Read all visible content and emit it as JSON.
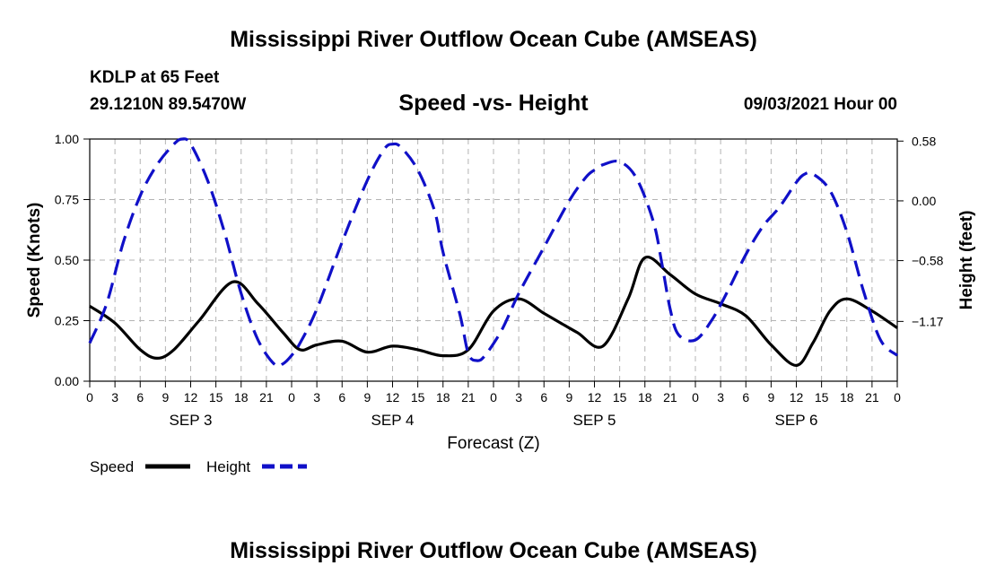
{
  "page": {
    "top_title": "Mississippi River Outflow Ocean Cube (AMSEAS)",
    "bottom_title": "Mississippi River Outflow Ocean Cube (AMSEAS)",
    "station": "KDLP at 65 Feet",
    "coords": "29.1210N  89.5470W",
    "date": "09/03/2021 Hour 00"
  },
  "colors": {
    "speed": "#000000",
    "height": "#1010c8",
    "grid": "#b4b4b4"
  },
  "chart_data": {
    "type": "line",
    "title": "Speed -vs- Height",
    "xlabel": "Forecast (Z)",
    "ylabel": "Speed (Knots)",
    "y2label": "Height (feet)",
    "xlim": [
      0,
      96
    ],
    "ylim": [
      0,
      1.0
    ],
    "y2lim": [
      -1.75,
      0.6
    ],
    "yticks": [
      0.0,
      0.25,
      0.5,
      0.75,
      1.0
    ],
    "ytick_labels": [
      "0.00",
      "0.25",
      "0.50",
      "0.75",
      "1.00"
    ],
    "y2ticks": [
      -1.17,
      -0.58,
      0.0,
      0.58
    ],
    "y2tick_labels": [
      "−1.17",
      "−0.58",
      "0.00",
      "0.58"
    ],
    "xticks": [
      0,
      3,
      6,
      9,
      12,
      15,
      18,
      21,
      24,
      27,
      30,
      33,
      36,
      39,
      42,
      45,
      48,
      51,
      54,
      57,
      60,
      63,
      66,
      69,
      72,
      75,
      78,
      81,
      84,
      87,
      90,
      93,
      96
    ],
    "xtick_labels": [
      "0",
      "3",
      "6",
      "9",
      "12",
      "15",
      "18",
      "21",
      "0",
      "3",
      "6",
      "9",
      "12",
      "15",
      "18",
      "21",
      "0",
      "3",
      "6",
      "9",
      "12",
      "15",
      "18",
      "21",
      "0",
      "3",
      "6",
      "9",
      "12",
      "15",
      "18",
      "21",
      "0"
    ],
    "day_labels": [
      {
        "x": 12,
        "label": "SEP 3"
      },
      {
        "x": 36,
        "label": "SEP 4"
      },
      {
        "x": 60,
        "label": "SEP 5"
      },
      {
        "x": 84,
        "label": "SEP 6"
      }
    ],
    "legend": [
      {
        "name": "Speed",
        "style": "solid"
      },
      {
        "name": "Height",
        "style": "dashed"
      }
    ],
    "series": [
      {
        "name": "Speed",
        "axis": "left",
        "x": [
          0,
          3,
          6,
          8,
          10,
          13,
          17,
          20,
          23,
          25,
          27,
          30,
          33,
          36,
          39,
          42,
          45,
          48,
          51,
          54,
          56,
          58,
          61,
          64,
          66,
          69,
          72,
          75,
          78,
          81,
          84,
          86,
          88,
          90,
          93,
          96
        ],
        "y": [
          0.31,
          0.24,
          0.13,
          0.095,
          0.13,
          0.25,
          0.41,
          0.32,
          0.2,
          0.13,
          0.15,
          0.165,
          0.12,
          0.145,
          0.13,
          0.105,
          0.13,
          0.29,
          0.34,
          0.28,
          0.24,
          0.2,
          0.145,
          0.34,
          0.51,
          0.44,
          0.36,
          0.32,
          0.27,
          0.15,
          0.065,
          0.16,
          0.29,
          0.34,
          0.29,
          0.22
        ]
      },
      {
        "name": "Height",
        "axis": "right",
        "x": [
          0,
          2,
          4,
          6,
          8,
          10,
          11,
          12,
          14,
          16,
          18,
          20,
          22,
          23,
          24,
          25,
          27,
          30,
          33,
          35,
          36,
          37,
          39,
          41,
          42,
          44,
          45,
          46,
          47,
          49,
          51,
          54,
          57,
          59,
          60,
          61,
          63,
          65,
          67,
          68,
          69,
          70,
          72,
          74,
          76,
          78,
          80,
          82,
          84,
          85,
          86,
          88,
          90,
          92,
          94,
          96
        ],
        "y": [
          -1.38,
          -1.0,
          -0.4,
          0.05,
          0.35,
          0.55,
          0.6,
          0.55,
          0.2,
          -0.3,
          -0.9,
          -1.35,
          -1.59,
          -1.58,
          -1.5,
          -1.38,
          -1.05,
          -0.4,
          0.2,
          0.5,
          0.55,
          0.52,
          0.3,
          -0.1,
          -0.5,
          -1.1,
          -1.48,
          -1.55,
          -1.5,
          -1.25,
          -0.9,
          -0.45,
          0.0,
          0.23,
          0.3,
          0.35,
          0.38,
          0.22,
          -0.2,
          -0.6,
          -1.05,
          -1.3,
          -1.35,
          -1.15,
          -0.85,
          -0.52,
          -0.25,
          -0.06,
          0.18,
          0.26,
          0.26,
          0.1,
          -0.3,
          -0.88,
          -1.35,
          -1.5
        ]
      }
    ]
  }
}
